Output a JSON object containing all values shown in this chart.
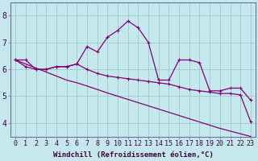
{
  "xlabel": "Windchill (Refroidissement éolien,°C)",
  "background_color": "#c5e8ed",
  "line_color": "#800078",
  "grid_color": "#a0c8d0",
  "hours": [
    0,
    1,
    2,
    3,
    4,
    5,
    6,
    7,
    8,
    9,
    10,
    11,
    12,
    13,
    14,
    15,
    16,
    17,
    18,
    19,
    20,
    21,
    22,
    23
  ],
  "main_line": [
    6.35,
    6.35,
    6.0,
    6.0,
    6.1,
    6.1,
    6.2,
    6.85,
    6.65,
    7.2,
    7.45,
    7.8,
    7.55,
    7.0,
    5.6,
    5.6,
    6.35,
    6.35,
    6.25,
    5.2,
    5.2,
    5.3,
    5.3,
    4.85
  ],
  "trend_line1": [
    6.35,
    6.1,
    6.0,
    6.0,
    6.1,
    6.1,
    6.2,
    6.0,
    5.85,
    5.75,
    5.7,
    5.65,
    5.6,
    5.55,
    5.5,
    5.45,
    5.35,
    5.25,
    5.2,
    5.15,
    5.1,
    5.1,
    5.05,
    4.05
  ],
  "trend_line2": [
    6.35,
    6.2,
    6.05,
    5.9,
    5.75,
    5.6,
    5.5,
    5.38,
    5.25,
    5.12,
    5.0,
    4.88,
    4.76,
    4.64,
    4.52,
    4.4,
    4.28,
    4.16,
    4.04,
    3.92,
    3.8,
    3.7,
    3.6,
    3.5
  ],
  "ylim": [
    3.5,
    8.5
  ],
  "yticks": [
    4,
    5,
    6,
    7,
    8
  ],
  "xlim": [
    -0.5,
    23.5
  ],
  "xticks": [
    0,
    1,
    2,
    3,
    4,
    5,
    6,
    7,
    8,
    9,
    10,
    11,
    12,
    13,
    14,
    15,
    16,
    17,
    18,
    19,
    20,
    21,
    22,
    23
  ],
  "xlabel_fontsize": 6.5,
  "tick_fontsize": 6,
  "linewidth": 0.9,
  "markersize": 2.5
}
